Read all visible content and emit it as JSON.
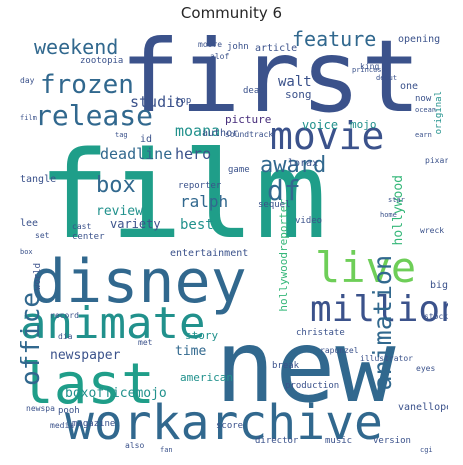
{
  "title": "Community 6",
  "palette": {
    "dark_blue": "#3b528b",
    "navy": "#31688e",
    "teal": "#21918c",
    "green_teal": "#1f9e89",
    "green": "#35b779",
    "light_green": "#6ece58",
    "yellow_green": "#b5de2b",
    "purple": "#472d7b"
  },
  "words": [
    {
      "key": "film",
      "text": "film"
    },
    {
      "key": "first",
      "text": "first"
    },
    {
      "key": "new",
      "text": "new"
    },
    {
      "key": "disney",
      "text": "disney"
    },
    {
      "key": "workarchive",
      "text": "workarchive"
    },
    {
      "key": "last",
      "text": "last"
    },
    {
      "key": "animate",
      "text": "animate"
    },
    {
      "key": "movie",
      "text": "movie"
    },
    {
      "key": "million",
      "text": "million"
    },
    {
      "key": "release",
      "text": "release"
    },
    {
      "key": "live",
      "text": "live"
    },
    {
      "key": "animation",
      "text": "animation"
    },
    {
      "key": "office",
      "text": "office"
    },
    {
      "key": "frozen",
      "text": "frozen"
    },
    {
      "key": "weekend",
      "text": "weekend"
    },
    {
      "key": "feature",
      "text": "feature"
    },
    {
      "key": "award",
      "text": "award"
    },
    {
      "key": "df",
      "text": "df"
    },
    {
      "key": "box",
      "text": "box"
    },
    {
      "key": "deadline",
      "text": "deadline"
    },
    {
      "key": "hero",
      "text": "hero"
    },
    {
      "key": "moana",
      "text": "moana"
    },
    {
      "key": "studio",
      "text": "studio"
    },
    {
      "key": "walt",
      "text": "walt"
    },
    {
      "key": "ralph",
      "text": "ralph"
    },
    {
      "key": "review",
      "text": "review"
    },
    {
      "key": "variety",
      "text": "variety"
    },
    {
      "key": "best",
      "text": "best"
    },
    {
      "key": "hollywood",
      "text": "hollywood"
    },
    {
      "key": "hollywoodreporter",
      "text": "hollywoodreporter"
    },
    {
      "key": "newspaper",
      "text": "newspaper"
    },
    {
      "key": "time",
      "text": "time"
    },
    {
      "key": "american",
      "text": "american"
    },
    {
      "key": "boxofficemojo",
      "text": "boxofficemojo"
    },
    {
      "key": "entertainment",
      "text": "entertainment"
    },
    {
      "key": "story",
      "text": "story"
    },
    {
      "key": "voice",
      "text": "voice"
    },
    {
      "key": "song",
      "text": "song"
    },
    {
      "key": "mojo",
      "text": "mojo"
    },
    {
      "key": "picture",
      "text": "picture"
    },
    {
      "key": "article",
      "text": "article"
    },
    {
      "key": "author",
      "text": "author"
    },
    {
      "key": "opening",
      "text": "opening"
    },
    {
      "key": "original",
      "text": "original"
    },
    {
      "key": "john",
      "text": "john"
    },
    {
      "key": "zootopia",
      "text": "zootopia"
    },
    {
      "key": "tangle",
      "text": "tangle"
    },
    {
      "key": "lee",
      "text": "lee"
    },
    {
      "key": "lorax",
      "text": "lorax"
    },
    {
      "key": "game",
      "text": "game"
    },
    {
      "key": "reporter",
      "text": "reporter"
    },
    {
      "key": "center",
      "text": "center"
    },
    {
      "key": "video",
      "text": "video"
    },
    {
      "key": "world",
      "text": "world"
    },
    {
      "key": "big",
      "text": "big"
    },
    {
      "key": "christate",
      "text": "christate"
    },
    {
      "key": "break",
      "text": "break"
    },
    {
      "key": "production",
      "text": "production"
    },
    {
      "key": "vanellope",
      "text": "vanellope"
    },
    {
      "key": "magazine",
      "text": "magazine"
    },
    {
      "key": "director",
      "text": "director"
    },
    {
      "key": "music",
      "text": "music"
    },
    {
      "key": "version",
      "text": "version"
    },
    {
      "key": "score",
      "text": "score"
    },
    {
      "key": "media",
      "text": "media"
    },
    {
      "key": "pooh",
      "text": "pooh"
    },
    {
      "key": "one",
      "text": "one"
    },
    {
      "key": "id",
      "text": "id"
    },
    {
      "key": "top",
      "text": "top"
    },
    {
      "key": "dead",
      "text": "dead"
    },
    {
      "key": "sequel",
      "text": "sequel"
    },
    {
      "key": "illustrator",
      "text": "illustrator"
    },
    {
      "key": "now",
      "text": "now"
    },
    {
      "key": "newspa",
      "text": "newspa"
    },
    {
      "key": "record",
      "text": "record"
    },
    {
      "key": "soundtrack",
      "text": "soundtrack"
    },
    {
      "key": "moore",
      "text": "moore"
    },
    {
      "key": "alof",
      "text": "alof"
    },
    {
      "key": "king",
      "text": "king"
    },
    {
      "key": "day",
      "text": "day"
    },
    {
      "key": "cast",
      "text": "cast"
    },
    {
      "key": "set",
      "text": "set"
    },
    {
      "key": "also",
      "text": "also"
    },
    {
      "key": "pixar",
      "text": "pixar"
    },
    {
      "key": "wreck",
      "text": "wreck"
    },
    {
      "key": "stock",
      "text": "stock"
    },
    {
      "key": "eyes",
      "text": "eyes"
    },
    {
      "key": "dia",
      "text": "dia"
    },
    {
      "key": "rapunzel",
      "text": "rapunzel"
    },
    {
      "key": "met",
      "text": "met"
    },
    {
      "key": "princess",
      "text": "princess"
    },
    {
      "key": "ocean",
      "text": "ocean"
    },
    {
      "key": "earn",
      "text": "earn"
    },
    {
      "key": "tag",
      "text": "tag"
    },
    {
      "key": "home",
      "text": "home"
    },
    {
      "key": "film2",
      "text": "film"
    },
    {
      "key": "box2",
      "text": "box"
    },
    {
      "key": "cgi",
      "text": "cgi"
    },
    {
      "key": "fan",
      "text": "fan"
    },
    {
      "key": "star",
      "text": "star"
    },
    {
      "key": "debut",
      "text": "debut"
    }
  ]
}
